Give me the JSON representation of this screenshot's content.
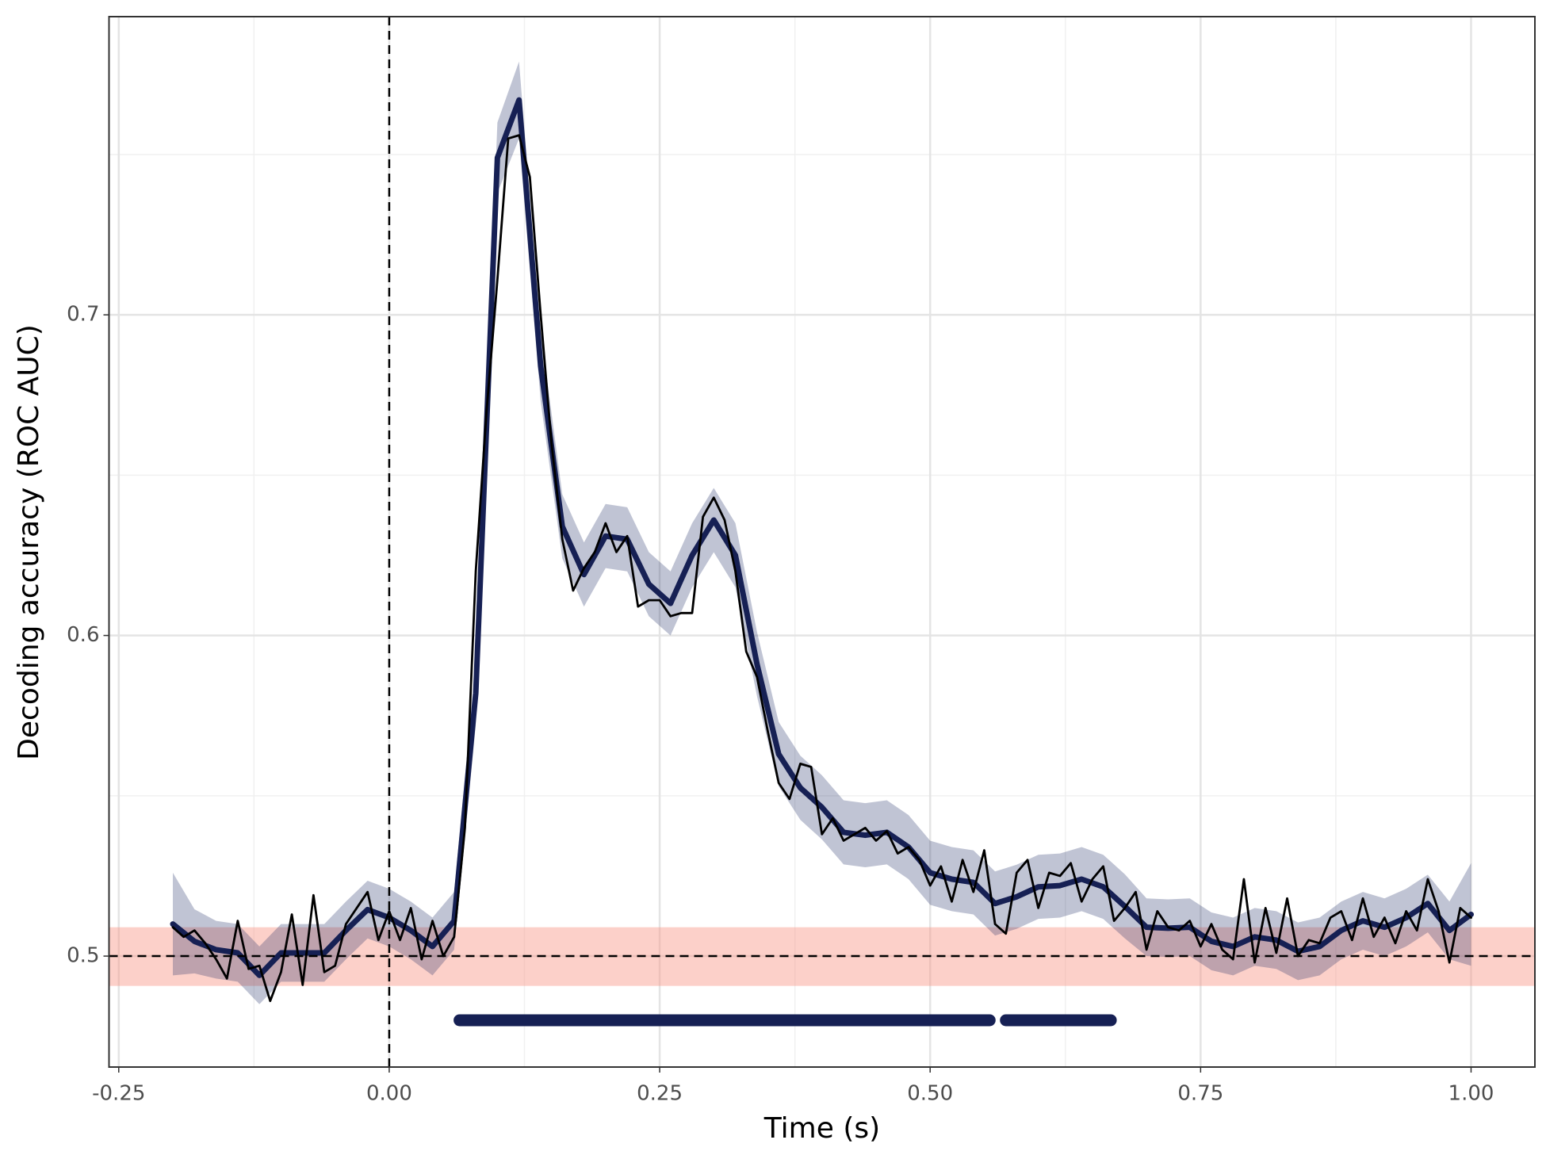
{
  "chart_data": {
    "type": "line",
    "x_label": "Time (s)",
    "y_label": "Decoding accuracy (ROC AUC)",
    "xlim": [
      -0.259,
      1.059
    ],
    "ylim": [
      0.4654,
      0.793
    ],
    "xticks": [
      {
        "value": -0.25,
        "label": "-0.25"
      },
      {
        "value": 0,
        "label": "0.00"
      },
      {
        "value": 0.25,
        "label": "0.25"
      },
      {
        "value": 0.5,
        "label": "0.50"
      },
      {
        "value": 0.75,
        "label": "0.75"
      },
      {
        "value": 1,
        "label": "1.00"
      }
    ],
    "yticks": [
      0.5,
      0.6,
      0.7
    ],
    "minor_grid_x": [
      -0.125,
      0.125,
      0.375,
      0.625,
      0.875
    ],
    "minor_grid_y": [
      0.55,
      0.65,
      0.75
    ],
    "grid": true,
    "chance": 0.5,
    "chance_band": [
      0.4907,
      0.509
    ],
    "chance_band_color": "rgba(248,150,135,0.45)",
    "onset": 0,
    "series": [
      {
        "color": "#162054",
        "band_color": "rgba(28,42,102,0.28)",
        "x": [
          -0.2,
          -0.18,
          -0.16,
          -0.14,
          -0.12,
          -0.1,
          -0.08,
          -0.06,
          -0.04,
          -0.02,
          0,
          0.02,
          0.04,
          0.06,
          0.08,
          0.1,
          0.12,
          0.14,
          0.16,
          0.18,
          0.2,
          0.22,
          0.24,
          0.26,
          0.28,
          0.3,
          0.32,
          0.34,
          0.36,
          0.38,
          0.4,
          0.42,
          0.44,
          0.46,
          0.48,
          0.5,
          0.52,
          0.54,
          0.56,
          0.58,
          0.6,
          0.62,
          0.64,
          0.66,
          0.68,
          0.7,
          0.72,
          0.74,
          0.76,
          0.78,
          0.8,
          0.82,
          0.84,
          0.86,
          0.88,
          0.9,
          0.92,
          0.94,
          0.96,
          0.98,
          1
        ],
        "values": [
          0.51,
          0.5046,
          0.502,
          0.501,
          0.494,
          0.501,
          0.501,
          0.501,
          0.508,
          0.5145,
          0.512,
          0.508,
          0.503,
          0.511,
          0.582,
          0.749,
          0.767,
          0.684,
          0.634,
          0.619,
          0.631,
          0.63,
          0.616,
          0.61,
          0.625,
          0.636,
          0.625,
          0.591,
          0.563,
          0.5525,
          0.5464,
          0.5386,
          0.5377,
          0.5386,
          0.534,
          0.526,
          0.524,
          0.523,
          0.5164,
          0.5185,
          0.5216,
          0.522,
          0.524,
          0.5216,
          0.5155,
          0.509,
          0.5087,
          0.509,
          0.5046,
          0.503,
          0.506,
          0.505,
          0.5015,
          0.503,
          0.508,
          0.511,
          0.509,
          0.512,
          0.5164,
          0.508,
          0.513
        ],
        "lower": [
          0.494,
          0.4946,
          0.493,
          0.492,
          0.485,
          0.492,
          0.492,
          0.492,
          0.499,
          0.5055,
          0.503,
          0.499,
          0.494,
          0.502,
          0.572,
          0.738,
          0.755,
          0.673,
          0.624,
          0.609,
          0.621,
          0.62,
          0.606,
          0.6,
          0.615,
          0.626,
          0.615,
          0.581,
          0.553,
          0.5425,
          0.5364,
          0.5286,
          0.5277,
          0.5286,
          0.524,
          0.516,
          0.514,
          0.513,
          0.5064,
          0.5085,
          0.5116,
          0.512,
          0.514,
          0.5116,
          0.5055,
          0.5,
          0.4997,
          0.5,
          0.4956,
          0.494,
          0.497,
          0.496,
          0.4925,
          0.494,
          0.499,
          0.502,
          0.5,
          0.503,
          0.5074,
          0.499,
          0.497
        ],
        "upper": [
          0.526,
          0.5146,
          0.511,
          0.51,
          0.503,
          0.51,
          0.51,
          0.51,
          0.517,
          0.5235,
          0.521,
          0.517,
          0.512,
          0.52,
          0.592,
          0.76,
          0.779,
          0.695,
          0.644,
          0.629,
          0.641,
          0.64,
          0.626,
          0.62,
          0.635,
          0.646,
          0.635,
          0.601,
          0.573,
          0.5625,
          0.5564,
          0.5486,
          0.5477,
          0.5486,
          0.544,
          0.536,
          0.534,
          0.533,
          0.5264,
          0.5285,
          0.5316,
          0.532,
          0.534,
          0.5316,
          0.5255,
          0.518,
          0.5177,
          0.518,
          0.5136,
          0.512,
          0.515,
          0.514,
          0.5105,
          0.512,
          0.517,
          0.52,
          0.518,
          0.521,
          0.5254,
          0.517,
          0.529
        ]
      },
      {
        "color": "#000000",
        "x": [
          -0.2,
          -0.19,
          -0.18,
          -0.17,
          -0.16,
          -0.15,
          -0.14,
          -0.13,
          -0.12,
          -0.11,
          -0.1,
          -0.09,
          -0.08,
          -0.07,
          -0.06,
          -0.05,
          -0.04,
          -0.03,
          -0.02,
          -0.01,
          0,
          0.01,
          0.02,
          0.03,
          0.04,
          0.05,
          0.06,
          0.07,
          0.08,
          0.09,
          0.1,
          0.11,
          0.12,
          0.13,
          0.14,
          0.15,
          0.16,
          0.17,
          0.18,
          0.19,
          0.2,
          0.21,
          0.22,
          0.23,
          0.24,
          0.25,
          0.26,
          0.27,
          0.28,
          0.29,
          0.3,
          0.31,
          0.32,
          0.33,
          0.34,
          0.35,
          0.36,
          0.37,
          0.38,
          0.39,
          0.4,
          0.41,
          0.42,
          0.43,
          0.44,
          0.45,
          0.46,
          0.47,
          0.48,
          0.49,
          0.5,
          0.51,
          0.52,
          0.53,
          0.54,
          0.55,
          0.56,
          0.57,
          0.58,
          0.59,
          0.6,
          0.61,
          0.62,
          0.63,
          0.64,
          0.65,
          0.66,
          0.67,
          0.68,
          0.69,
          0.7,
          0.71,
          0.72,
          0.73,
          0.74,
          0.75,
          0.76,
          0.77,
          0.78,
          0.79,
          0.8,
          0.81,
          0.82,
          0.83,
          0.84,
          0.85,
          0.86,
          0.87,
          0.88,
          0.89,
          0.9,
          0.91,
          0.92,
          0.93,
          0.94,
          0.95,
          0.96,
          0.97,
          0.98,
          0.99,
          1
        ],
        "values": [
          0.509,
          0.506,
          0.508,
          0.504,
          0.499,
          0.493,
          0.511,
          0.496,
          0.497,
          0.486,
          0.495,
          0.513,
          0.491,
          0.519,
          0.495,
          0.497,
          0.51,
          0.515,
          0.52,
          0.505,
          0.514,
          0.505,
          0.515,
          0.499,
          0.511,
          0.5,
          0.506,
          0.54,
          0.62,
          0.67,
          0.711,
          0.755,
          0.756,
          0.743,
          0.7,
          0.66,
          0.63,
          0.614,
          0.621,
          0.626,
          0.635,
          0.626,
          0.631,
          0.609,
          0.611,
          0.611,
          0.606,
          0.607,
          0.607,
          0.637,
          0.643,
          0.636,
          0.62,
          0.595,
          0.587,
          0.57,
          0.554,
          0.549,
          0.56,
          0.559,
          0.538,
          0.543,
          0.536,
          0.538,
          0.54,
          0.536,
          0.539,
          0.532,
          0.534,
          0.53,
          0.522,
          0.528,
          0.517,
          0.53,
          0.52,
          0.533,
          0.51,
          0.507,
          0.526,
          0.53,
          0.515,
          0.526,
          0.525,
          0.529,
          0.517,
          0.524,
          0.528,
          0.511,
          0.515,
          0.52,
          0.502,
          0.514,
          0.509,
          0.508,
          0.511,
          0.503,
          0.51,
          0.502,
          0.499,
          0.524,
          0.498,
          0.515,
          0.501,
          0.518,
          0.5,
          0.505,
          0.504,
          0.512,
          0.514,
          0.505,
          0.518,
          0.506,
          0.512,
          0.504,
          0.514,
          0.508,
          0.524,
          0.514,
          0.498,
          0.515,
          0.512
        ]
      }
    ],
    "significance": {
      "y": 0.48,
      "color": "#162054",
      "segments": [
        [
          0.065,
          0.555
        ],
        [
          0.57,
          0.667
        ]
      ]
    }
  }
}
